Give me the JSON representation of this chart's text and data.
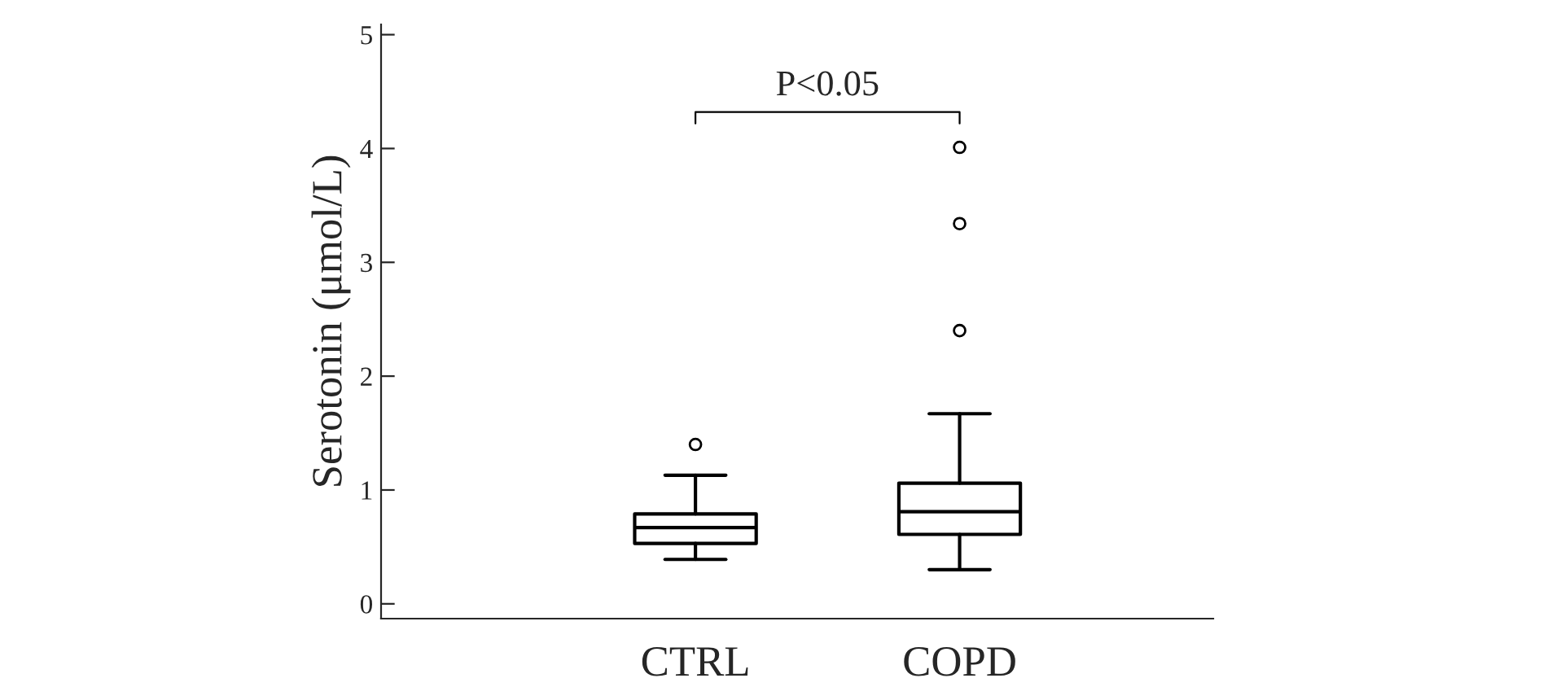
{
  "chart_data": {
    "type": "box",
    "ylabel": "Serotonin (μmol/L)",
    "categories": [
      "CTRL",
      "COPD"
    ],
    "boxes": [
      {
        "low": 0.39,
        "q1": 0.53,
        "median": 0.67,
        "q3": 0.79,
        "high": 1.13,
        "outliers": [
          1.4
        ]
      },
      {
        "low": 0.3,
        "q1": 0.61,
        "median": 0.81,
        "q3": 1.06,
        "high": 1.67,
        "outliers": [
          2.4,
          3.34,
          4.01
        ]
      }
    ],
    "ylim": [
      -0.13,
      5.09
    ],
    "yticks": [
      0,
      1,
      2,
      3,
      4,
      5
    ],
    "grid": false,
    "legend": false,
    "annotations": [
      "P<0.05"
    ]
  }
}
